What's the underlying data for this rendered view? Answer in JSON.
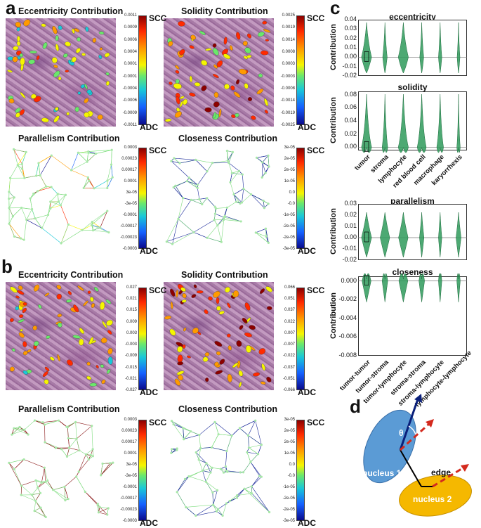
{
  "panels": {
    "a": {
      "letter": "a",
      "titles": [
        "Eccentricity Contribution",
        "Solidity Contribution",
        "Parallelism Contribution",
        "Closeness Contribution"
      ],
      "colorbars": [
        {
          "ticks": [
            "0.0011",
            "0.0009",
            "0.0006",
            "0.0004",
            "0.0001",
            "-0.0001",
            "-0.0004",
            "-0.0006",
            "-0.0009",
            "-0.0011"
          ]
        },
        {
          "ticks": [
            "0.0025",
            "0.0019",
            "0.0014",
            "0.0008",
            "0.0003",
            "-0.0003",
            "-0.0008",
            "-0.0014",
            "-0.0019",
            "-0.0025"
          ]
        },
        {
          "ticks": [
            "0.0003",
            "0.00023",
            "0.00017",
            "0.0001",
            "3e-05",
            "-3e-05",
            "-0.0001",
            "-0.00017",
            "-0.00023",
            "-0.0003"
          ]
        },
        {
          "ticks": [
            "3e-05",
            "2e-05",
            "2e-05",
            "1e-05",
            "0.0",
            "-0.0",
            "-1e-05",
            "-2e-05",
            "-2e-05",
            "-3e-05"
          ]
        }
      ]
    },
    "b": {
      "letter": "b",
      "titles": [
        "Eccentricity Contribution",
        "Solidity Contribution",
        "Parallelism Contribution",
        "Closeness Contribution"
      ],
      "colorbars": [
        {
          "ticks": [
            "0.027",
            "0.021",
            "0.015",
            "0.009",
            "0.003",
            "-0.003",
            "-0.009",
            "-0.015",
            "-0.021",
            "-0.027"
          ]
        },
        {
          "ticks": [
            "0.066",
            "0.051",
            "0.037",
            "0.022",
            "0.007",
            "-0.007",
            "-0.022",
            "-0.037",
            "-0.051",
            "-0.066"
          ]
        },
        {
          "ticks": [
            "0.0003",
            "0.00023",
            "0.00017",
            "0.0001",
            "3e-05",
            "-3e-05",
            "-0.0001",
            "-0.00017",
            "-0.00023",
            "-0.0003"
          ]
        },
        {
          "ticks": [
            "3e-05",
            "2e-05",
            "2e-05",
            "1e-05",
            "0.0",
            "-0.0",
            "-1e-05",
            "-2e-05",
            "-2e-05",
            "-3e-05"
          ]
        }
      ]
    },
    "scc": "SCC",
    "adc": "ADC",
    "c": {
      "letter": "c",
      "ylabel": "Contribution",
      "node_categories": [
        "tumor",
        "stroma",
        "lymphocyte",
        "red blood cell",
        "macrophage",
        "karyorrhexis"
      ],
      "edge_categories": [
        "tumor-tumor",
        "tumor-stroma",
        "tumor-lymphocyte",
        "stroma-stroma",
        "stroma-lymphocyte",
        "lymphocyte-lymphocyte"
      ],
      "plots": [
        {
          "title": "eccentricity",
          "ylim": [
            -0.02,
            0.04
          ],
          "yticks": [
            "0.04",
            "0.03",
            "0.02",
            "0.01",
            "0.00",
            "-0.01",
            "-0.02"
          ]
        },
        {
          "title": "solidity",
          "ylim": [
            -0.005,
            0.085
          ],
          "yticks": [
            "0.08",
            "0.06",
            "0.04",
            "0.02",
            "0.00"
          ]
        },
        {
          "title": "parallelism",
          "ylim": [
            -0.02,
            0.03
          ],
          "yticks": [
            "0.03",
            "0.02",
            "0.01",
            "0.00",
            "-0.01",
            "-0.02"
          ]
        },
        {
          "title": "closeness",
          "ylim": [
            -0.008,
            0.0005
          ],
          "yticks": [
            "0.000",
            "-0.002",
            "-0.004",
            "-0.006",
            "-0.008"
          ]
        }
      ]
    },
    "d": {
      "letter": "d",
      "theta": "θ",
      "edge": "edge",
      "nucleus1": "nucleus 1",
      "nucleus2": "nucleus 2",
      "colors": {
        "nucleus1": "#5b9bd5",
        "nucleus2": "#f5b800",
        "arrow": "#0a1f7a",
        "dash": "#d42a1e"
      }
    }
  }
}
